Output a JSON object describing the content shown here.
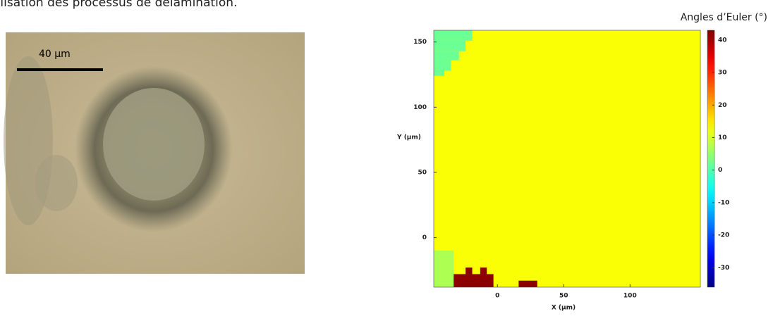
{
  "caption": "alisation des processus de délamination.",
  "micrograph": {
    "scale_label": "40 µm"
  },
  "chart_data": {
    "type": "heatmap",
    "colorbar_title": "Angles d’Euler (°)",
    "xlabel": "X (µm)",
    "ylabel": "Y (µm)",
    "xlim": [
      -48,
      153
    ],
    "ylim": [
      -38,
      159
    ],
    "xticks": [
      0,
      50,
      100
    ],
    "yticks": [
      0,
      50,
      100,
      150
    ],
    "clim": [
      -36,
      43
    ],
    "cticks": [
      40,
      30,
      20,
      10,
      0,
      -10,
      -20,
      -30
    ],
    "colormap": "jet",
    "regions": [
      {
        "x": [
          -48,
          153
        ],
        "y": [
          -38,
          159
        ],
        "value": 13
      },
      {
        "x": [
          -48,
          -19
        ],
        "y": [
          151,
          159
        ],
        "value": 2
      },
      {
        "x": [
          -48,
          -24
        ],
        "y": [
          143,
          151
        ],
        "value": 2
      },
      {
        "x": [
          -48,
          -29
        ],
        "y": [
          136,
          143
        ],
        "value": 2
      },
      {
        "x": [
          -48,
          -35
        ],
        "y": [
          128,
          136
        ],
        "value": 2
      },
      {
        "x": [
          -48,
          -40
        ],
        "y": [
          124,
          128
        ],
        "value": 2
      },
      {
        "x": [
          -48,
          -33
        ],
        "y": [
          -38,
          -10
        ],
        "value": 7
      },
      {
        "x": [
          -33,
          -3
        ],
        "y": [
          -38,
          -28
        ],
        "value": 42
      },
      {
        "x": [
          -24,
          -19
        ],
        "y": [
          -28,
          -23
        ],
        "value": 42
      },
      {
        "x": [
          -13,
          -8
        ],
        "y": [
          -28,
          -23
        ],
        "value": 42
      },
      {
        "x": [
          16,
          30
        ],
        "y": [
          -38,
          -33
        ],
        "value": 42
      }
    ]
  }
}
